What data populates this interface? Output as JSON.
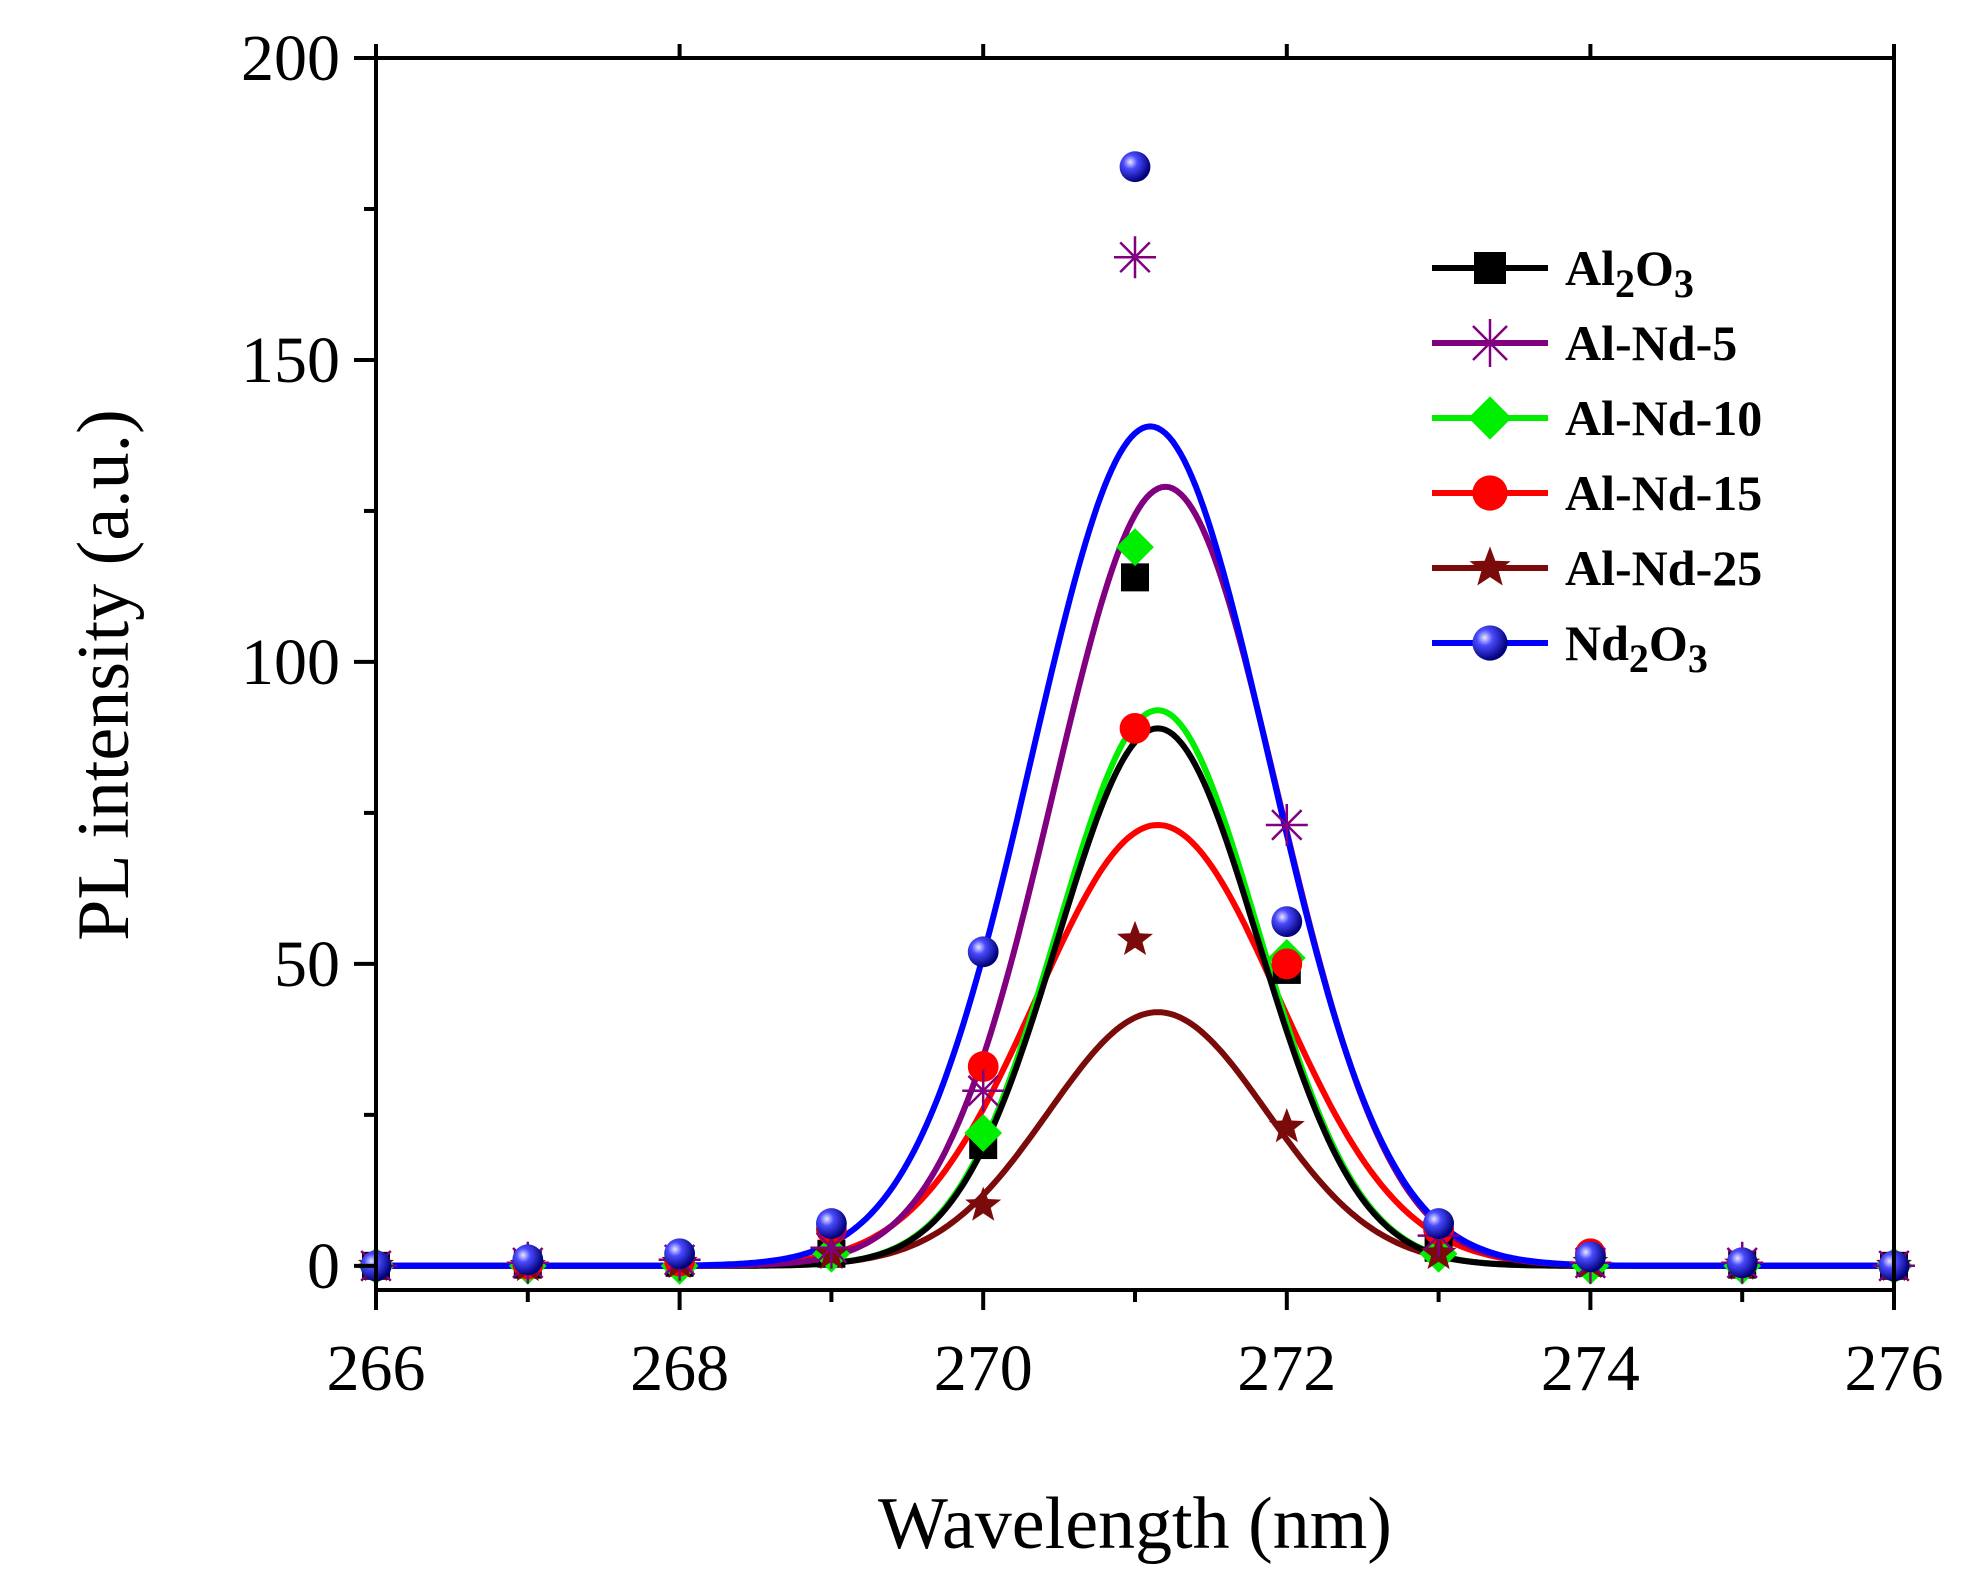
{
  "chart_data": {
    "type": "scatter",
    "title": "",
    "xlabel": "Wavelength (nm)",
    "ylabel": "PL intensity (a.u.)",
    "xlim": [
      266,
      276
    ],
    "ylim": [
      -4,
      200
    ],
    "xticks": [
      266,
      268,
      270,
      272,
      274,
      276
    ],
    "xtick_labels": [
      "266",
      "268",
      "270",
      "272",
      "274",
      "276"
    ],
    "yticks": [
      0,
      50,
      100,
      150,
      200
    ],
    "ytick_labels": [
      "0",
      "50",
      "100",
      "150",
      "200"
    ],
    "grid": false,
    "legend_position": "top-right",
    "x": [
      266,
      267,
      268,
      269,
      270,
      271,
      272,
      273,
      274,
      275,
      276
    ],
    "series": [
      {
        "name": "Al2O3",
        "label_main": "Al",
        "label_sub1": "2",
        "label_mid": "O",
        "label_sub2": "3",
        "color": "#000000",
        "marker": "square",
        "values": [
          0,
          0.2,
          0.5,
          2,
          20,
          114,
          49,
          3,
          0.5,
          0.2,
          0
        ],
        "fit": {
          "amplitude": 89,
          "center": 271.15,
          "sigma": 0.66,
          "baseline": 0
        }
      },
      {
        "name": "Al-Nd-5",
        "label_main": "Al-Nd-5",
        "color": "#800080",
        "marker": "asterisk",
        "values": [
          0,
          0.5,
          1,
          3,
          29,
          167,
          73,
          5,
          0.5,
          0.5,
          0
        ],
        "fit": {
          "amplitude": 129,
          "center": 271.2,
          "sigma": 0.74,
          "baseline": 0
        }
      },
      {
        "name": "Al-Nd-10",
        "label_main": "Al-Nd-10",
        "color": "#00ee00",
        "marker": "diamond",
        "values": [
          0,
          0,
          0,
          2,
          22,
          119,
          51,
          2,
          0,
          0,
          0
        ],
        "fit": {
          "amplitude": 92,
          "center": 271.15,
          "sigma": 0.66,
          "baseline": 0
        }
      },
      {
        "name": "Al-Nd-15",
        "label_main": "Al-Nd-15",
        "color": "#ff0000",
        "marker": "circle",
        "values": [
          0,
          0.3,
          0.8,
          6,
          33,
          89,
          50,
          6,
          2,
          0.5,
          0
        ],
        "fit": {
          "amplitude": 73,
          "center": 271.15,
          "sigma": 0.8,
          "baseline": 0
        }
      },
      {
        "name": "Al-Nd-25",
        "label_main": "Al-Nd-25",
        "color": "#7b0a0a",
        "marker": "star",
        "values": [
          0,
          0,
          0.5,
          2,
          10,
          54,
          23,
          2,
          0.5,
          0.2,
          0
        ],
        "fit": {
          "amplitude": 42,
          "center": 271.15,
          "sigma": 0.72,
          "baseline": 0
        }
      },
      {
        "name": "Nd2O3",
        "label_main": "Nd",
        "label_sub1": "2",
        "label_mid": "O",
        "label_sub2": "3",
        "color": "#0000ff",
        "marker": "sphere",
        "values": [
          0,
          1,
          2,
          7,
          52,
          182,
          57,
          7,
          1.5,
          0.5,
          0
        ],
        "fit": {
          "amplitude": 139,
          "center": 271.1,
          "sigma": 0.78,
          "baseline": 0
        }
      }
    ]
  }
}
